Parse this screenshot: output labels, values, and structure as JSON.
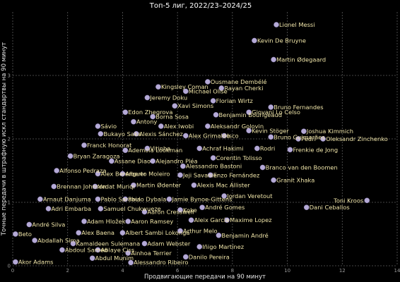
{
  "chart_data": {
    "type": "scatter",
    "title": "Топ-5 лиг, 2022/23–2024/25",
    "xlabel": "Продвигающие передачи на 90 минут",
    "ylabel": "Точные передачи в штрафную искл стандартвы на 90 минут",
    "xlim": [
      0,
      14
    ],
    "ylim": [
      0,
      4
    ],
    "xticks": [
      "0",
      "2",
      "4",
      "6",
      "8",
      "10",
      "12",
      "14"
    ],
    "yticks": [
      "0",
      "1",
      "2",
      "3"
    ],
    "grid": true,
    "point_color": "#c4b8e8",
    "label_color": "#efe4a8",
    "background_color": "#000000",
    "labeled_points": [
      {
        "name": "Lionel Messi",
        "x": 9.6,
        "y": 3.8
      },
      {
        "name": "Kevin De Bruyne",
        "x": 8.8,
        "y": 3.55
      },
      {
        "name": "Martin Ødegaard",
        "x": 9.5,
        "y": 3.25
      },
      {
        "name": "Ousmane Dembélé",
        "x": 7.1,
        "y": 2.9
      },
      {
        "name": "Kingsley Coman",
        "x": 5.3,
        "y": 2.82
      },
      {
        "name": "Michael Olise",
        "x": 6.3,
        "y": 2.75
      },
      {
        "name": "Rayan Cherki",
        "x": 7.6,
        "y": 2.8
      },
      {
        "name": "Jeremy Doku",
        "x": 4.9,
        "y": 2.65
      },
      {
        "name": "Florian Wirtz",
        "x": 7.3,
        "y": 2.6
      },
      {
        "name": "Xavi Simons",
        "x": 5.9,
        "y": 2.52
      },
      {
        "name": "Bruno Fernandes",
        "x": 9.4,
        "y": 2.5
      },
      {
        "name": "Edon Zhegrova",
        "x": 4.1,
        "y": 2.42
      },
      {
        "name": "Giovani Lo Celso",
        "x": 8.6,
        "y": 2.42
      },
      {
        "name": "Benjamin Bourigeaud",
        "x": 7.4,
        "y": 2.38
      },
      {
        "name": "Borna Sosa",
        "x": 5.1,
        "y": 2.35
      },
      {
        "name": "Antony",
        "x": 4.4,
        "y": 2.27
      },
      {
        "name": "Sávio",
        "x": 3.1,
        "y": 2.2
      },
      {
        "name": "Alex Iwobi",
        "x": 5.4,
        "y": 2.2
      },
      {
        "name": "Aleksandr Golovin",
        "x": 7.1,
        "y": 2.2
      },
      {
        "name": "Kevin Stöger",
        "x": 8.6,
        "y": 2.13
      },
      {
        "name": "Joshua Kimmich",
        "x": 10.6,
        "y": 2.12
      },
      {
        "name": "Bukayo Saka",
        "x": 3.2,
        "y": 2.08
      },
      {
        "name": "Alexis Sánchez",
        "x": 4.5,
        "y": 2.08
      },
      {
        "name": "Alex Grimaldo",
        "x": 6.3,
        "y": 2.05
      },
      {
        "name": "Isco",
        "x": 7.7,
        "y": 2.05
      },
      {
        "name": "Bruno Guimarães",
        "x": 9.4,
        "y": 2.03
      },
      {
        "name": "Pedri",
        "x": 10.4,
        "y": 2.0
      },
      {
        "name": "Oleksandr Zinchenko",
        "x": 11.3,
        "y": 2.0
      },
      {
        "name": "Franck Honorat",
        "x": 2.6,
        "y": 1.9
      },
      {
        "name": "Ademola Lookman",
        "x": 4.1,
        "y": 1.82
      },
      {
        "name": "Vitinha",
        "x": 4.9,
        "y": 1.85
      },
      {
        "name": "Achraf Hakimi",
        "x": 6.8,
        "y": 1.85
      },
      {
        "name": "Rodri",
        "x": 8.9,
        "y": 1.85
      },
      {
        "name": "Frenkie de Jong",
        "x": 10.1,
        "y": 1.83
      },
      {
        "name": "Bryan Zaragoza",
        "x": 2.1,
        "y": 1.73
      },
      {
        "name": "Corentin Tolisso",
        "x": 7.3,
        "y": 1.7
      },
      {
        "name": "Assane Diao",
        "x": 3.6,
        "y": 1.65
      },
      {
        "name": "Alejandro Pléa",
        "x": 5.1,
        "y": 1.65
      },
      {
        "name": "Alessandro Bastoni",
        "x": 6.2,
        "y": 1.57
      },
      {
        "name": "Branco van den Boomen",
        "x": 9.1,
        "y": 1.55
      },
      {
        "name": "Alfonso Pedraza",
        "x": 1.6,
        "y": 1.5
      },
      {
        "name": "Alex Berenguer",
        "x": 3.1,
        "y": 1.45
      },
      {
        "name": "Alberto Moleiro",
        "x": 4.0,
        "y": 1.45
      },
      {
        "name": "Jeji Savanier",
        "x": 6.1,
        "y": 1.43
      },
      {
        "name": "Enzo Fernández",
        "x": 7.2,
        "y": 1.43
      },
      {
        "name": "Granit Xhaka",
        "x": 9.5,
        "y": 1.35
      },
      {
        "name": "Brennan Johnson",
        "x": 1.5,
        "y": 1.25
      },
      {
        "name": "Vedat Muriqi",
        "x": 3.0,
        "y": 1.25
      },
      {
        "name": "Martin Ødenter",
        "x": 4.4,
        "y": 1.27
      },
      {
        "name": "Alexis Mac Allister",
        "x": 6.6,
        "y": 1.27
      },
      {
        "name": "Arnaut Danjuma",
        "x": 1.0,
        "y": 1.05
      },
      {
        "name": "Jordan Veretout",
        "x": 7.7,
        "y": 1.1
      },
      {
        "name": "Pablo Sarabia",
        "x": 3.1,
        "y": 1.05
      },
      {
        "name": "Paulo Dybala",
        "x": 4.1,
        "y": 1.05
      },
      {
        "name": "Jamie Bynoe-Gittens",
        "x": 5.7,
        "y": 1.05
      },
      {
        "name": "Toni Kroos",
        "x": 12.9,
        "y": 1.03
      },
      {
        "name": "Adri Embarba",
        "x": 1.3,
        "y": 0.9
      },
      {
        "name": "Samuel Chukwueze",
        "x": 3.2,
        "y": 0.9
      },
      {
        "name": "Aaron Cresswell",
        "x": 4.8,
        "y": 0.85
      },
      {
        "name": "Koke",
        "x": 6.1,
        "y": 0.88
      },
      {
        "name": "André Gomes",
        "x": 6.9,
        "y": 0.92
      },
      {
        "name": "Dani Ceballos",
        "x": 10.7,
        "y": 0.92
      },
      {
        "name": "André Silva",
        "x": 0.6,
        "y": 0.65
      },
      {
        "name": "Adam Hložek",
        "x": 2.6,
        "y": 0.7
      },
      {
        "name": "Aaron Ramsey",
        "x": 4.2,
        "y": 0.7
      },
      {
        "name": "Aleix García",
        "x": 6.5,
        "y": 0.72
      },
      {
        "name": "Maxime Lopez",
        "x": 7.8,
        "y": 0.72
      },
      {
        "name": "Beto",
        "x": 0.1,
        "y": 0.5
      },
      {
        "name": "Alex Baena",
        "x": 2.4,
        "y": 0.52
      },
      {
        "name": "Albert Sambi Lokonga",
        "x": 4.0,
        "y": 0.52
      },
      {
        "name": "Arthur Melo",
        "x": 6.1,
        "y": 0.55
      },
      {
        "name": "Benjamin André",
        "x": 7.5,
        "y": 0.48
      },
      {
        "name": "Abdallah Sima",
        "x": 0.8,
        "y": 0.4
      },
      {
        "name": "Kamaldeen Sulemana",
        "x": 2.2,
        "y": 0.35
      },
      {
        "name": "Adam Webster",
        "x": 4.8,
        "y": 0.35
      },
      {
        "name": "Iñigo Martínez",
        "x": 6.8,
        "y": 0.3
      },
      {
        "name": "Abdoul Samed",
        "x": 1.8,
        "y": 0.25
      },
      {
        "name": "Ablaye Ciss",
        "x": 3.1,
        "y": 0.25
      },
      {
        "name": "Ainhoa Terrier",
        "x": 4.2,
        "y": 0.2
      },
      {
        "name": "Akor Adams",
        "x": 0.1,
        "y": 0.06
      },
      {
        "name": "Abdul Munim",
        "x": 2.9,
        "y": 0.12
      },
      {
        "name": "Alessandro Ribeiro",
        "x": 4.3,
        "y": 0.05
      },
      {
        "name": "Danilo Pereira",
        "x": 6.3,
        "y": 0.14
      }
    ]
  }
}
